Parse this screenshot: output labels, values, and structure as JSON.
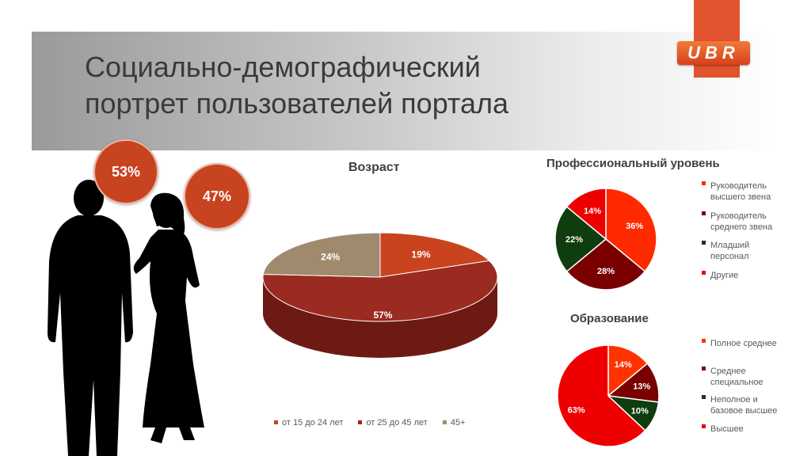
{
  "title_line1": "Социально-демографический",
  "title_line2": "портрет пользователей портала",
  "logo_text": "UBR",
  "gender": {
    "male_pct": "53%",
    "female_pct": "47%"
  },
  "colors": {
    "accent": "#e2532f",
    "bubble": "#c8431f"
  },
  "chart_data": [
    {
      "type": "pie",
      "title": "Возраст",
      "categories": [
        "от 15 до 24 лет",
        "от 25 до 45 лет",
        "45+"
      ],
      "values": [
        19,
        57,
        24
      ],
      "labels": [
        "19%",
        "57%",
        "24%"
      ],
      "colors": [
        "#c9431e",
        "#9b2a20",
        "#a08a6d"
      ],
      "legend": "bottom"
    },
    {
      "type": "pie",
      "title": "Профессиональный уровень",
      "categories": [
        "Руководитель высшего звена",
        "Руководитель среднего звена",
        "Младший персонал",
        "Другие"
      ],
      "values": [
        36,
        28,
        22,
        14
      ],
      "labels": [
        "36%",
        "28%",
        "22%",
        "14%"
      ],
      "colors": [
        "#ff2a00",
        "#7a0000",
        "#0f3d0f",
        "#ee0000"
      ],
      "legend": "right"
    },
    {
      "type": "pie",
      "title": "Образование",
      "categories": [
        "Полное среднее",
        "Среднее специальное",
        "Неполное и базовое высшее",
        "Высшее"
      ],
      "values": [
        14,
        13,
        10,
        63
      ],
      "labels": [
        "14%",
        "13%",
        "10%",
        "63%"
      ],
      "colors": [
        "#ff3300",
        "#7a0000",
        "#0f3d0f",
        "#ee0000"
      ],
      "legend": "right"
    }
  ],
  "legend_age": [
    "от 15 до 24 лет",
    "от 25 до 45 лет",
    "45+"
  ],
  "legend_prof": [
    [
      "Руководитель",
      "высшего звена"
    ],
    [
      "Руководитель",
      "среднего звена"
    ],
    [
      "Младший",
      "персонал"
    ],
    [
      "Другие"
    ]
  ],
  "legend_edu": [
    [
      "Полное среднее"
    ],
    [
      "Среднее",
      "специальное"
    ],
    [
      "Неполное и",
      "базовое высшее"
    ],
    [
      "Высшее"
    ]
  ]
}
